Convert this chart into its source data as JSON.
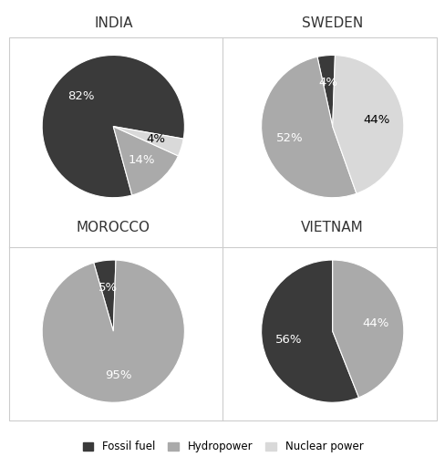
{
  "charts": [
    {
      "title": "INDIA",
      "slices": [
        82,
        14,
        4
      ],
      "labels": [
        "82%",
        "14%",
        "4%"
      ],
      "colors": [
        "#3a3a3a",
        "#aaaaaa",
        "#d9d9d9"
      ],
      "label_colors": [
        "white",
        "white",
        "black"
      ],
      "startangle": -10
    },
    {
      "title": "SWEDEN",
      "slices": [
        4,
        52,
        44
      ],
      "labels": [
        "4%",
        "52%",
        "44%"
      ],
      "colors": [
        "#3a3a3a",
        "#aaaaaa",
        "#d9d9d9"
      ],
      "label_colors": [
        "white",
        "white",
        "black"
      ],
      "startangle": 88
    },
    {
      "title": "MOROCCO",
      "slices": [
        5,
        95
      ],
      "labels": [
        "5%",
        "95%"
      ],
      "colors": [
        "#3a3a3a",
        "#aaaaaa"
      ],
      "label_colors": [
        "white",
        "white"
      ],
      "startangle": 88
    },
    {
      "title": "VIETNAM",
      "slices": [
        56,
        44
      ],
      "labels": [
        "56%",
        "44%"
      ],
      "colors": [
        "#3a3a3a",
        "#aaaaaa"
      ],
      "label_colors": [
        "white",
        "white"
      ],
      "startangle": 90
    }
  ],
  "legend": [
    {
      "label": "Fossil fuel",
      "color": "#3a3a3a"
    },
    {
      "label": "Hydropower",
      "color": "#aaaaaa"
    },
    {
      "label": "Nuclear power",
      "color": "#d9d9d9"
    }
  ],
  "background_color": "#ffffff",
  "grid_color": "#cccccc",
  "title_fontsize": 11,
  "label_fontsize": 9.5,
  "figsize": [
    4.89,
    5.12
  ],
  "dpi": 100
}
